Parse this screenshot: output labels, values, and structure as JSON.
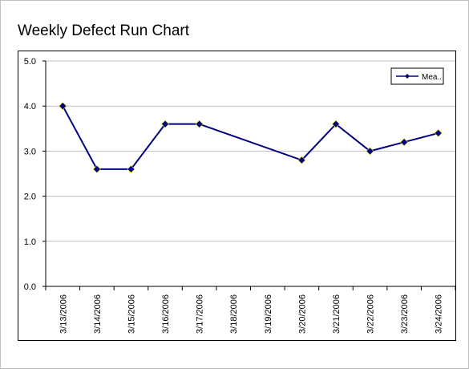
{
  "chart_data": {
    "type": "line",
    "title": "Weekly Defect Run Chart",
    "categories": [
      "3/13/2006",
      "3/14/2006",
      "3/15/2006",
      "3/16/2006",
      "3/17/2006",
      "3/18/2006",
      "3/19/2006",
      "3/20/2006",
      "3/21/2006",
      "3/22/2006",
      "3/23/2006",
      "3/24/2006"
    ],
    "series": [
      {
        "name": "Mea..",
        "color": "#000080",
        "marker": "diamond",
        "points": [
          {
            "x": "3/13/2006",
            "y": 4.0
          },
          {
            "x": "3/14/2006",
            "y": 2.6
          },
          {
            "x": "3/15/2006",
            "y": 2.6
          },
          {
            "x": "3/16/2006",
            "y": 3.6
          },
          {
            "x": "3/17/2006",
            "y": 3.6
          },
          {
            "x": "3/20/2006",
            "y": 2.8
          },
          {
            "x": "3/21/2006",
            "y": 3.6
          },
          {
            "x": "3/22/2006",
            "y": 3.0
          },
          {
            "x": "3/23/2006",
            "y": 3.2
          },
          {
            "x": "3/24/2006",
            "y": 3.4
          }
        ]
      }
    ],
    "yticks": [
      "0.0",
      "1.0",
      "2.0",
      "3.0",
      "4.0",
      "5.0"
    ],
    "ylim": [
      0,
      5
    ],
    "grid": true,
    "legend": "top-right"
  }
}
